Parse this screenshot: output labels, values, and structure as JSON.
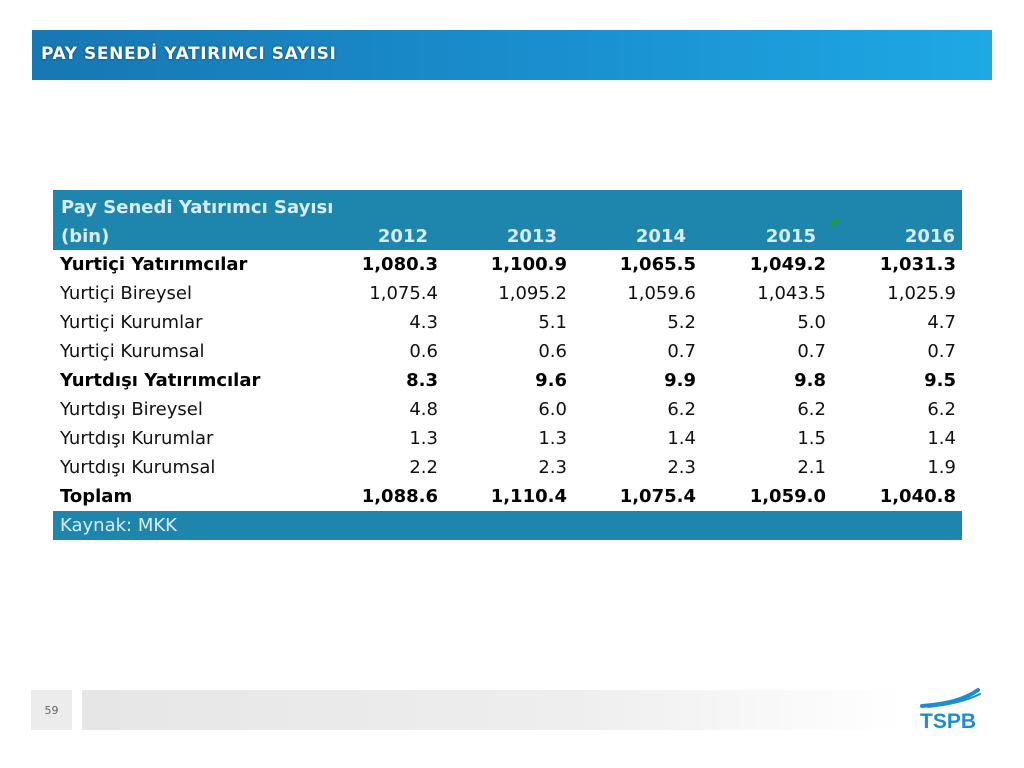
{
  "slide": {
    "title": "PAY SENEDİ YATIRIMCI SAYISI",
    "page_number": "59",
    "logo_text": "TSPB"
  },
  "table": {
    "header_line1": "Pay Senedi Yatırımcı Sayısı",
    "header_line2": "(bin)",
    "years": [
      "2012",
      "2013",
      "2014",
      "2015",
      "2016"
    ],
    "rows": [
      {
        "label": "Yurtiçi Yatırımcılar",
        "bold": true,
        "values": [
          "1,080.3",
          "1,100.9",
          "1,065.5",
          "1,049.2",
          "1,031.3"
        ]
      },
      {
        "label": "Yurtiçi Bireysel",
        "bold": false,
        "values": [
          "1,075.4",
          "1,095.2",
          "1,059.6",
          "1,043.5",
          "1,025.9"
        ]
      },
      {
        "label": "Yurtiçi Kurumlar",
        "bold": false,
        "values": [
          "4.3",
          "5.1",
          "5.2",
          "5.0",
          "4.7"
        ]
      },
      {
        "label": "Yurtiçi Kurumsal",
        "bold": false,
        "values": [
          "0.6",
          "0.6",
          "0.7",
          "0.7",
          "0.7"
        ]
      },
      {
        "label": "Yurtdışı Yatırımcılar",
        "bold": true,
        "values": [
          "8.3",
          "9.6",
          "9.9",
          "9.8",
          "9.5"
        ]
      },
      {
        "label": "Yurtdışı Bireysel",
        "bold": false,
        "values": [
          "4.8",
          "6.0",
          "6.2",
          "6.2",
          "6.2"
        ]
      },
      {
        "label": "Yurtdışı Kurumlar",
        "bold": false,
        "values": [
          "1.3",
          "1.3",
          "1.4",
          "1.5",
          "1.4"
        ]
      },
      {
        "label": "Yurtdışı Kurumsal",
        "bold": false,
        "values": [
          "2.2",
          "2.3",
          "2.3",
          "2.1",
          "1.9"
        ]
      },
      {
        "label": "Toplam",
        "bold": true,
        "values": [
          "1,088.6",
          "1,110.4",
          "1,075.4",
          "1,059.0",
          "1,040.8"
        ]
      }
    ],
    "source": "Kaynak: MKK"
  },
  "colors": {
    "title_bar": "#1a8fcf",
    "table_header": "#1e86ad",
    "header_text": "#d7ecf6",
    "logo_blue": "#1a8fcf"
  }
}
